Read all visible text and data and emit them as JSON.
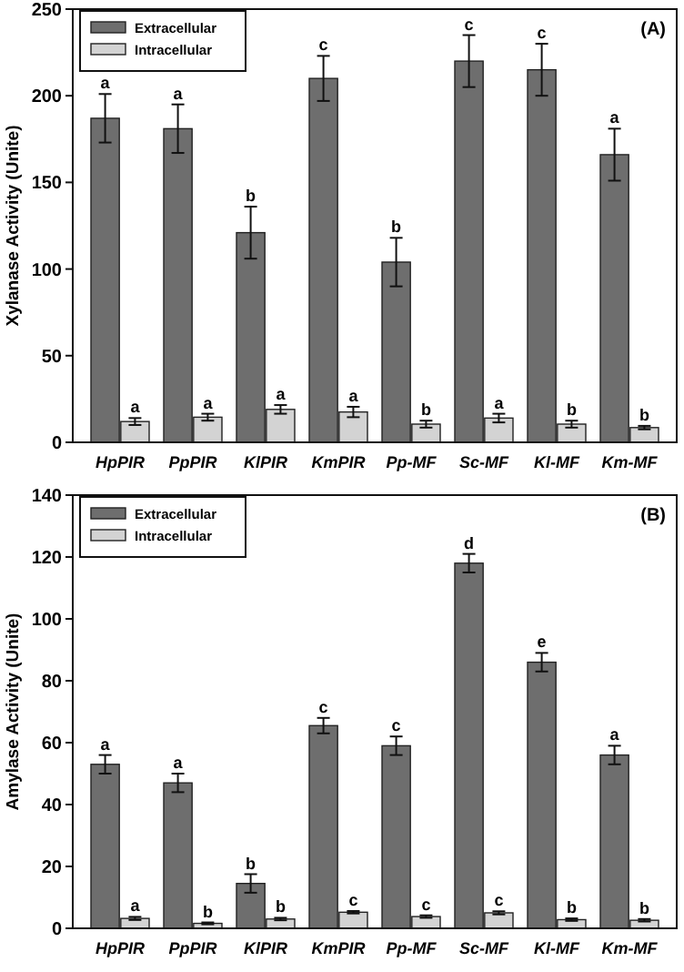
{
  "chart_data": [
    {
      "type": "bar",
      "ylabel": "Xylanase Activity (Unite)",
      "categories": [
        "HpPIR",
        "PpPIR",
        "KlPIR",
        "KmPIR",
        "Pp-MF",
        "Sc-MF",
        "Kl-MF",
        "Km-MF"
      ],
      "series": [
        {
          "name": "Extracellular",
          "color": "#6e6e6e",
          "values": [
            187,
            181,
            121,
            210,
            104,
            220,
            215,
            166
          ],
          "errors": [
            14,
            14,
            15,
            13,
            14,
            15,
            15,
            15
          ]
        },
        {
          "name": "Intracellular",
          "color": "#d3d3d3",
          "values": [
            12,
            14.5,
            19,
            17.5,
            10.5,
            14,
            10.5,
            8.5
          ],
          "errors": [
            2,
            2,
            2.5,
            3,
            2,
            2.5,
            2,
            1
          ]
        }
      ],
      "ylim": [
        0,
        250
      ],
      "yticks": [
        0,
        50,
        100,
        150,
        200,
        250
      ],
      "grid": false,
      "legend": "top left",
      "annotations": [
        "(A)",
        {
          "text": "a",
          "x": "HpPIR",
          "y": 201
        },
        {
          "text": "a",
          "x": "PpPIR",
          "y": 195
        },
        {
          "text": "b",
          "x": "KlPIR",
          "y": 136
        },
        {
          "text": "c",
          "x": "KmPIR",
          "y": 223
        },
        {
          "text": "b",
          "x": "Pp-MF",
          "y": 118
        },
        {
          "text": "c",
          "x": "Sc-MF",
          "y": 235
        },
        {
          "text": "c",
          "x": "Kl-MF",
          "y": 230
        },
        {
          "text": "a",
          "x": "Km-MF",
          "y": 181
        },
        {
          "text": "a",
          "x": "HpPIR",
          "y": 14
        },
        {
          "text": "a",
          "x": "PpPIR",
          "y": 16.5
        },
        {
          "text": "a",
          "x": "KlPIR",
          "y": 21.5
        },
        {
          "text": "a",
          "x": "KmPIR",
          "y": 20.5
        },
        {
          "text": "b",
          "x": "Pp-MF",
          "y": 12.5
        },
        {
          "text": "a",
          "x": "Sc-MF",
          "y": 16.5
        },
        {
          "text": "b",
          "x": "Kl-MF",
          "y": 12.5
        },
        {
          "text": "b",
          "x": "Km-MF",
          "y": 9.5
        }
      ]
    },
    {
      "type": "bar",
      "ylabel": "Amylase Activity (Unite)",
      "categories": [
        "HpPIR",
        "PpPIR",
        "KlPIR",
        "KmPIR",
        "Pp-MF",
        "Sc-MF",
        "Kl-MF",
        "Km-MF"
      ],
      "series": [
        {
          "name": "Extracellular",
          "color": "#6e6e6e",
          "values": [
            53,
            47,
            14.5,
            65.5,
            59,
            118,
            86,
            56
          ],
          "errors": [
            3,
            3,
            3,
            2.5,
            3,
            3,
            3,
            3
          ]
        },
        {
          "name": "Intracellular",
          "color": "#d3d3d3",
          "values": [
            3.2,
            1.6,
            3,
            5.2,
            3.8,
            5,
            2.8,
            2.6
          ],
          "errors": [
            0.5,
            0.3,
            0.4,
            0.4,
            0.4,
            0.5,
            0.4,
            0.4
          ]
        }
      ],
      "ylim": [
        0,
        140
      ],
      "yticks": [
        0,
        20,
        40,
        60,
        80,
        100,
        120,
        140
      ],
      "grid": false,
      "legend": "top left",
      "annotations": [
        "(B)",
        {
          "text": "a",
          "x": "HpPIR",
          "y": 56
        },
        {
          "text": "a",
          "x": "PpPIR",
          "y": 50
        },
        {
          "text": "b",
          "x": "KlPIR",
          "y": 17.5
        },
        {
          "text": "c",
          "x": "KmPIR",
          "y": 68
        },
        {
          "text": "c",
          "x": "Pp-MF",
          "y": 62
        },
        {
          "text": "d",
          "x": "Sc-MF",
          "y": 121
        },
        {
          "text": "e",
          "x": "Kl-MF",
          "y": 89
        },
        {
          "text": "a",
          "x": "Km-MF",
          "y": 59
        },
        {
          "text": "a",
          "x": "HpPIR",
          "y": 3.7
        },
        {
          "text": "b",
          "x": "PpPIR",
          "y": 1.9
        },
        {
          "text": "b",
          "x": "KlPIR",
          "y": 3.4
        },
        {
          "text": "c",
          "x": "KmPIR",
          "y": 5.6
        },
        {
          "text": "c",
          "x": "Pp-MF",
          "y": 4.2
        },
        {
          "text": "c",
          "x": "Sc-MF",
          "y": 5.5
        },
        {
          "text": "b",
          "x": "Kl-MF",
          "y": 3.2
        },
        {
          "text": "b",
          "x": "Km-MF",
          "y": 3
        }
      ]
    }
  ]
}
